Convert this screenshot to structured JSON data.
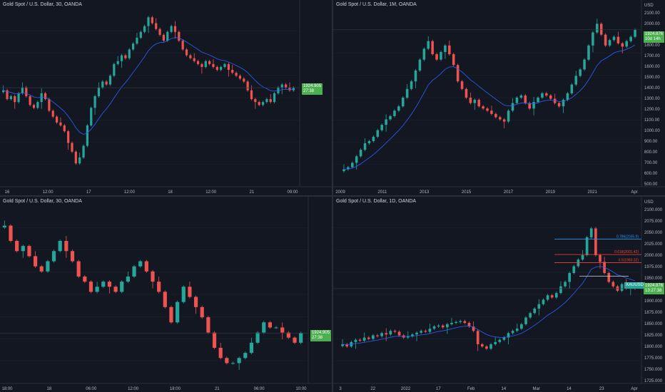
{
  "colors": {
    "up": "#26a69a",
    "down": "#ef5350",
    "bg": "#131722",
    "grid": "#1e222d",
    "text": "#b2b5be",
    "ma_blue": "#2962ff",
    "tag_green": "#4caf50"
  },
  "panes": [
    {
      "id": "top-left",
      "title": "Gold Spot / U.S. Dollar, 30, OANDA",
      "x_labels": [
        "16",
        "12:00",
        "17",
        "12:00",
        "18",
        "12:00",
        "21",
        "09:00"
      ],
      "y_labels": [],
      "price_tag": {
        "price": "1924.905",
        "time": "27:38"
      },
      "chart_data": {
        "type": "candlestick",
        "symbol": "XAUUSD",
        "interval": "30",
        "ylim": [
          1891,
          1952
        ],
        "closes": [
          1924,
          1921,
          1922,
          1920,
          1923,
          1925,
          1922,
          1919,
          1918,
          1920,
          1923,
          1921,
          1917,
          1915,
          1913,
          1912,
          1910,
          1906,
          1903,
          1899,
          1901,
          1905,
          1912,
          1918,
          1922,
          1925,
          1927,
          1926,
          1929,
          1933,
          1934,
          1936,
          1935,
          1938,
          1940,
          1942,
          1944,
          1946,
          1949,
          1947,
          1945,
          1943,
          1941,
          1944,
          1946,
          1944,
          1941,
          1938,
          1936,
          1935,
          1934,
          1933,
          1932,
          1934,
          1933,
          1932,
          1931,
          1932,
          1933,
          1931,
          1930,
          1929,
          1928,
          1927,
          1924,
          1921,
          1920,
          1919,
          1920,
          1921,
          1920,
          1923,
          1925,
          1926,
          1925,
          1924,
          1924.9
        ]
      }
    },
    {
      "id": "top-right",
      "title": "Gold Spot / U.S. Dollar, 1M, OANDA",
      "x_labels": [
        "2009",
        "2011",
        "2013",
        "2015",
        "2017",
        "2019",
        "2021",
        "Apr"
      ],
      "y_labels": [
        "2100.00",
        "2000.00",
        "1900.00",
        "1800.00",
        "1700.00",
        "1600.00",
        "1500.00",
        "1400.00",
        "1300.00",
        "1200.00",
        "1100.00",
        "1000.00",
        "900.00",
        "800.00",
        "700.00",
        "600.00",
        "500.00"
      ],
      "axis_unit": "USD",
      "price_tag": {
        "price": "1924.876",
        "time": "10d 14h"
      },
      "chart_data": {
        "type": "candlestick",
        "symbol": "XAUUSD",
        "interval": "1M",
        "ylim": [
          480,
          2120
        ],
        "closes": [
          640,
          660,
          700,
          760,
          820,
          880,
          900,
          940,
          1000,
          1050,
          1100,
          1130,
          1180,
          1220,
          1300,
          1380,
          1450,
          1550,
          1650,
          1750,
          1820,
          1700,
          1650,
          1720,
          1780,
          1700,
          1600,
          1450,
          1380,
          1300,
          1250,
          1280,
          1220,
          1200,
          1180,
          1150,
          1120,
          1100,
          1080,
          1180,
          1250,
          1300,
          1320,
          1250,
          1200,
          1260,
          1300,
          1340,
          1320,
          1290,
          1250,
          1220,
          1280,
          1340,
          1420,
          1500,
          1560,
          1650,
          1780,
          1900,
          1980,
          1880,
          1780,
          1830,
          1860,
          1800,
          1770,
          1820,
          1860,
          1924.9
        ]
      }
    },
    {
      "id": "bottom-left",
      "title": "Gold Spot / U.S. Dollar, 30, OANDA",
      "x_labels": [
        "18:00",
        "18",
        "06:00",
        "12:00",
        "18:00",
        "21",
        "06:00",
        "10:00"
      ],
      "y_labels": [],
      "price_tag": {
        "price": "1924.905",
        "time": "27:38"
      },
      "chart_data": {
        "type": "candlestick",
        "symbol": "XAUUSD",
        "interval": "30",
        "ylim": [
          1915,
          1950
        ],
        "closes": [
          1946,
          1943,
          1941,
          1942,
          1940,
          1938,
          1937,
          1939,
          1941,
          1943,
          1941,
          1939,
          1936,
          1935,
          1933,
          1934,
          1935,
          1934,
          1933,
          1935,
          1936,
          1938,
          1939,
          1937,
          1935,
          1933,
          1930,
          1927,
          1931,
          1934,
          1932,
          1930,
          1928,
          1925,
          1922,
          1920,
          1919,
          1919,
          1920,
          1921,
          1923,
          1925,
          1927,
          1926,
          1926,
          1925,
          1924,
          1923,
          1924.9
        ]
      }
    },
    {
      "id": "bottom-right",
      "title": "Gold Spot / U.S. Dollar, 1D, OANDA",
      "x_labels": [
        "3",
        "22",
        "2022",
        "17",
        "Feb",
        "14",
        "Mar",
        "14",
        "23",
        "Apr"
      ],
      "y_labels": [
        "2100.000",
        "2075.000",
        "2050.000",
        "2025.000",
        "2000.000",
        "1975.000",
        "1950.000",
        "1925.000",
        "1900.000",
        "1875.000",
        "1850.000",
        "1825.000",
        "1800.000",
        "1775.000",
        "1750.000",
        "1725.000"
      ],
      "axis_unit": "USD",
      "price_tag": {
        "price": "1924.876",
        "time": "13:27:38",
        "symbol": "XAUUSD"
      },
      "fib_labels": [
        "0.786(2035.9)",
        "0.618(2001.42)",
        "0.5(1983.32)"
      ],
      "chart_data": {
        "type": "candlestick",
        "symbol": "XAUUSD",
        "interval": "1D",
        "ylim": [
          1712,
          2112
        ],
        "closes": [
          1800,
          1795,
          1805,
          1810,
          1808,
          1815,
          1812,
          1820,
          1818,
          1825,
          1822,
          1830,
          1828,
          1820,
          1815,
          1818,
          1822,
          1826,
          1830,
          1828,
          1835,
          1840,
          1842,
          1838,
          1845,
          1848,
          1850,
          1852,
          1848,
          1840,
          1830,
          1800,
          1795,
          1790,
          1800,
          1805,
          1810,
          1815,
          1825,
          1830,
          1835,
          1845,
          1860,
          1870,
          1880,
          1890,
          1900,
          1910,
          1905,
          1915,
          1930,
          1940,
          1960,
          1975,
          1990,
          2000,
          2040,
          2060,
          2000,
          1985,
          1960,
          1940,
          1930,
          1920,
          1935,
          1925,
          1930,
          1924.9
        ]
      }
    }
  ],
  "labels": {
    "tl_title": "Gold Spot / U.S. Dollar, 30, OANDA",
    "tr_title": "Gold Spot / U.S. Dollar, 1M, OANDA",
    "bl_title": "Gold Spot / U.S. Dollar, 30, OANDA",
    "br_title": "Gold Spot / U.S. Dollar, 1D, OANDA",
    "usd": "USD",
    "tl_tag": "1924.905\n27:38",
    "tr_tag": "1924.876\n10d 14h",
    "bl_tag": "1924.905\n27:38",
    "br_tag": "XAUUSD",
    "br_tag2": "1924.876\n13:27:38"
  }
}
